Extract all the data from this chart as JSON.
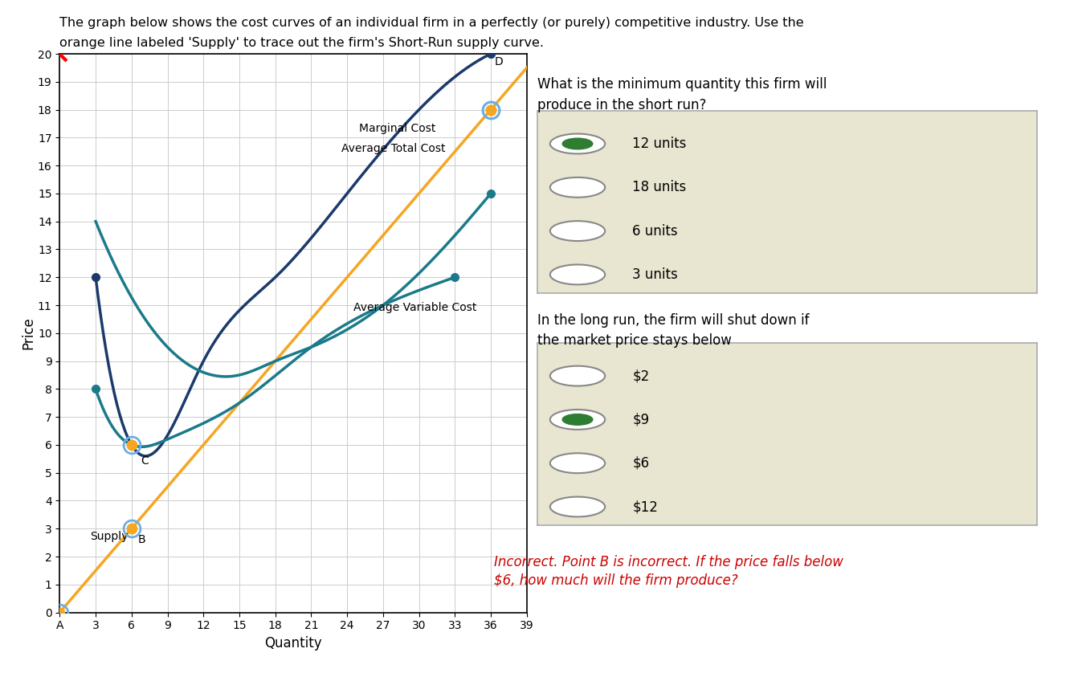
{
  "title_line1": "The graph below shows the cost curves of an individual firm in a perfectly (or purely) competitive industry. Use the",
  "title_line2": "orange line labeled 'Supply' to trace out the firm's Short-Run supply curve.",
  "xlabel": "Quantity",
  "ylabel": "Price",
  "xlim": [
    0,
    39
  ],
  "ylim": [
    0,
    20
  ],
  "xticks": [
    0,
    3,
    6,
    9,
    12,
    15,
    18,
    21,
    24,
    27,
    30,
    33,
    36,
    39
  ],
  "xticklabels": [
    "A",
    "3",
    "6",
    "9",
    "12",
    "15",
    "18",
    "21",
    "24",
    "27",
    "30",
    "33",
    "36",
    "39"
  ],
  "yticks": [
    0,
    1,
    2,
    3,
    4,
    5,
    6,
    7,
    8,
    9,
    10,
    11,
    12,
    13,
    14,
    15,
    16,
    17,
    18,
    19,
    20
  ],
  "supply_color": "#F5A623",
  "mc_color": "#1B3A6B",
  "atc_color": "#1B7A8A",
  "grid_color": "#CCCCCC",
  "background_color": "#FFFFFF",
  "circle_color": "#6AAFE6",
  "question1": "What is the minimum quantity this firm will\nproduce in the short run?",
  "q1_options": [
    "12 units",
    "18 units",
    "6 units",
    "3 units"
  ],
  "q1_selected": 0,
  "question2": "In the long run, the firm will shut down if\nthe market price stays below",
  "q2_options": [
    "$2",
    "$9",
    "$6",
    "$12"
  ],
  "q2_selected": 1,
  "feedback_line1": "Incorrect. Point B is incorrect. If the price falls below",
  "feedback_line2": "$6, how much will the firm produce?",
  "feedback_color": "#CC0000",
  "box_bg": "#E8E6D0",
  "box_border": "#AAAAAA",
  "supply_slope": 0.5,
  "mc_q_pts": [
    3,
    6,
    12,
    18,
    24,
    30,
    36
  ],
  "mc_p_pts": [
    12,
    6,
    9,
    12,
    15,
    18,
    20
  ],
  "atc_q_pts": [
    3,
    9,
    15,
    18,
    21,
    27,
    33,
    36
  ],
  "atc_p_pts": [
    14,
    9.5,
    8.5,
    9.0,
    9.5,
    11.0,
    13.5,
    15
  ],
  "avc_q_pts": [
    3,
    6,
    9,
    15,
    21,
    27,
    33
  ],
  "avc_p_pts": [
    8,
    6,
    6.2,
    7.5,
    9.5,
    11.0,
    12
  ]
}
